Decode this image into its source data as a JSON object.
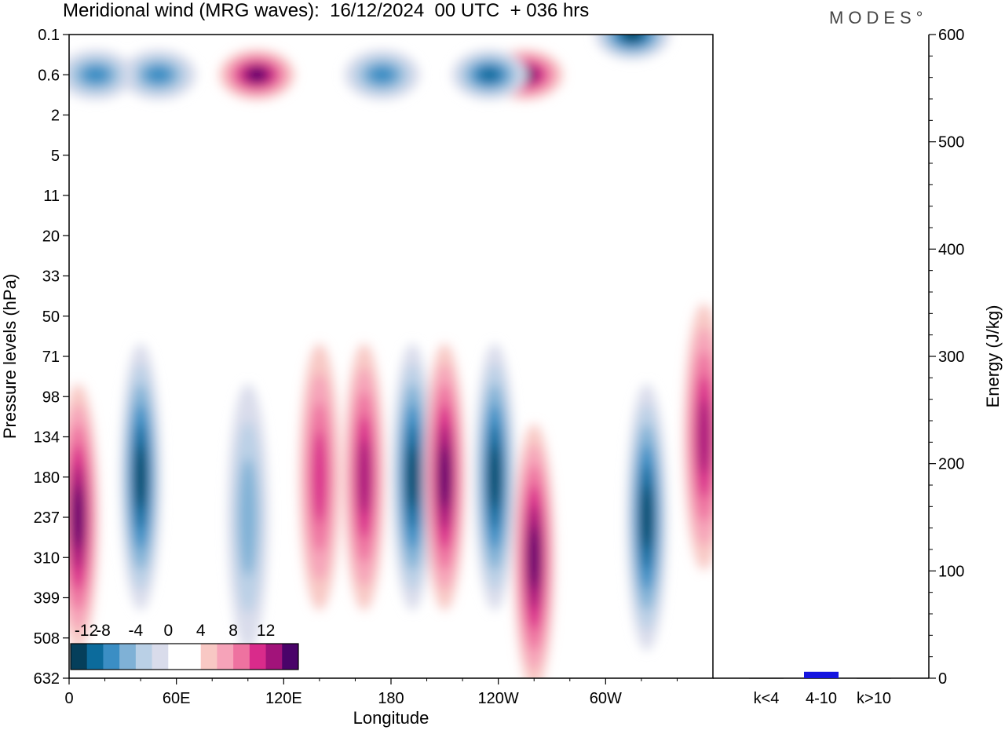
{
  "header": {
    "title": "Meridional wind (MRG waves):  16/12/2024  00 UTC  + 036 hrs",
    "brand": "MODES°"
  },
  "colors": {
    "neg": [
      "#053f5b",
      "#0c6b9c",
      "#3b8ec4",
      "#7fb1d6",
      "#bad0e6",
      "#d9dceb"
    ],
    "pos": [
      "#f8c8c4",
      "#f6a3b9",
      "#ee72a0",
      "#d92b8b",
      "#a2137a",
      "#4a0369"
    ],
    "energy_bar": "#1515e0"
  },
  "chart_data": [
    {
      "type": "heatmap",
      "title": "Meridional wind (MRG waves):  16/12/2024  00 UTC  + 036 hrs",
      "xlabel": "Longitude",
      "ylabel": "Pressure levels (hPa)",
      "x_ticks": [
        "0",
        "60E",
        "120E",
        "180",
        "120W",
        "60W"
      ],
      "y_ticks": [
        "0.1",
        "0.6",
        "2",
        "5",
        "11",
        "20",
        "33",
        "50",
        "71",
        "98",
        "134",
        "180",
        "237",
        "310",
        "399",
        "508",
        "632"
      ],
      "colorbar_labels": [
        "-12",
        "-8",
        "-4",
        "0",
        "4",
        "8",
        "12"
      ],
      "levels": [
        -12,
        -10,
        -8,
        -6,
        -4,
        -2,
        0,
        2,
        4,
        6,
        8,
        10,
        12
      ],
      "features": [
        {
          "lon": 5,
          "level": "237",
          "value": 12
        },
        {
          "lon": 40,
          "level": "180",
          "value": -12
        },
        {
          "lon": 100,
          "level": "237",
          "value": -6
        },
        {
          "lon": 140,
          "level": "180",
          "value": 8
        },
        {
          "lon": 165,
          "level": "180",
          "value": 10
        },
        {
          "lon": 192,
          "level": "180",
          "value": -12
        },
        {
          "lon": 210,
          "level": "180",
          "value": 13
        },
        {
          "lon": 238,
          "level": "180",
          "value": -13
        },
        {
          "lon": 260,
          "level": "310",
          "value": 12
        },
        {
          "lon": 323,
          "level": "237",
          "value": -12
        },
        {
          "lon": 355,
          "level": "134",
          "value": 10
        },
        {
          "lon": 50,
          "level": "0.6",
          "value": -8
        },
        {
          "lon": 105,
          "level": "0.6",
          "value": 13
        },
        {
          "lon": 255,
          "level": "0.6",
          "value": 13
        },
        {
          "lon": 235,
          "level": "0.6",
          "value": -10
        },
        {
          "lon": 315,
          "level": "0.1",
          "value": -13
        },
        {
          "lon": 15,
          "level": "0.6",
          "value": -8
        },
        {
          "lon": 175,
          "level": "0.6",
          "value": -8
        }
      ]
    },
    {
      "type": "bar",
      "categories": [
        "k<4",
        "4-10",
        "k>10"
      ],
      "values": [
        0,
        6,
        0
      ],
      "ylabel": "Energy (J/kg)",
      "ylim": [
        0,
        600
      ],
      "y_ticks": [
        "0",
        "100",
        "200",
        "300",
        "400",
        "500",
        "600"
      ]
    }
  ]
}
